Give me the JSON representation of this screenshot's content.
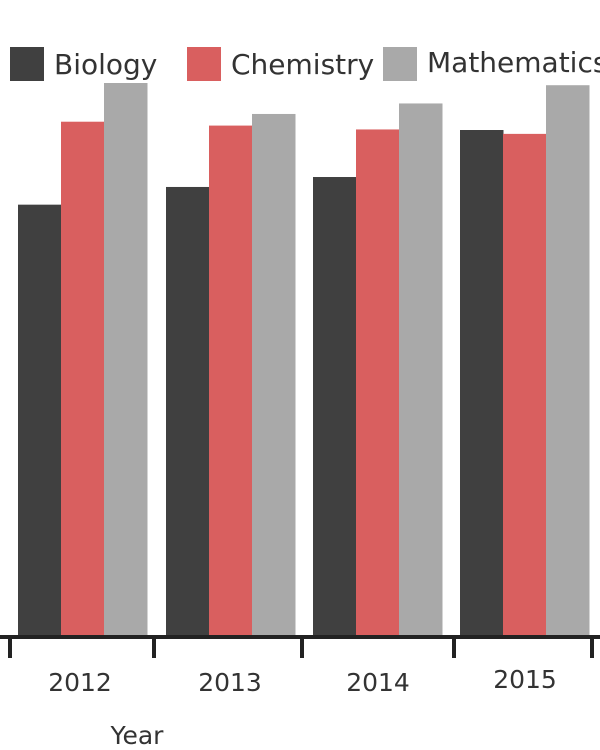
{
  "chart_data": {
    "type": "bar",
    "title": "",
    "xlabel": "Year",
    "ylabel": "",
    "categories": [
      "2012",
      "2013",
      "2014",
      "2015"
    ],
    "ylim": [
      0,
      100
    ],
    "grid": false,
    "legend_position": "top",
    "series": [
      {
        "name": "Biology",
        "color": "#404040",
        "values": [
          78,
          81.2,
          83,
          91.5
        ]
      },
      {
        "name": "Chemistry",
        "color": "#d95f5f",
        "values": [
          93,
          92.3,
          91.6,
          90.8
        ]
      },
      {
        "name": "Mathematics",
        "color": "#a9a9a9",
        "values": [
          100,
          94.4,
          96.3,
          99.6
        ]
      }
    ]
  }
}
